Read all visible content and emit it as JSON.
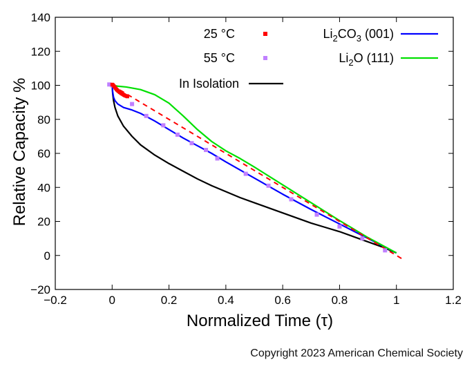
{
  "chart_data": {
    "type": "line",
    "xlabel": "Normalized Time (τ)",
    "ylabel": "Relative Capacity %",
    "xlim": [
      -0.2,
      1.2
    ],
    "ylim": [
      -20,
      140
    ],
    "xticks": [
      -0.2,
      0,
      0.2,
      0.4,
      0.6,
      0.8,
      1,
      1.2
    ],
    "xtick_labels": [
      "−0.2",
      "0",
      "0.2",
      "0.4",
      "0.6",
      "0.8",
      "1",
      "1.2"
    ],
    "yticks": [
      -20,
      0,
      20,
      40,
      60,
      80,
      100,
      120,
      140
    ],
    "ytick_labels": [
      "−20",
      "0",
      "20",
      "40",
      "60",
      "80",
      "100",
      "120",
      "140"
    ],
    "grid": false,
    "legend_position": "top",
    "series": [
      {
        "name": "25 °C",
        "kind": "scatter",
        "marker": "square",
        "color": "#ff0000",
        "x": [
          0.0,
          0.003,
          0.006,
          0.009,
          0.012,
          0.015,
          0.018,
          0.021,
          0.024,
          0.027,
          0.03,
          0.033,
          0.036,
          0.039,
          0.042,
          0.045,
          0.048,
          0.051,
          0.054
        ],
        "y": [
          100.5,
          100.2,
          99.6,
          99.0,
          98.3,
          97.7,
          97.2,
          96.7,
          96.3,
          95.9,
          95.6,
          95.2,
          94.9,
          94.6,
          94.3,
          94.0,
          93.8,
          93.6,
          93.4
        ]
      },
      {
        "name": "55 °C",
        "kind": "scatter",
        "marker": "square",
        "color": "#c080ff",
        "x": [
          -0.01,
          0.0,
          0.07,
          0.12,
          0.18,
          0.23,
          0.28,
          0.33,
          0.37,
          0.47,
          0.55,
          0.63,
          0.72,
          0.8,
          0.88,
          0.96
        ],
        "y": [
          100.5,
          100.0,
          89.0,
          82.0,
          76.5,
          71.0,
          66.0,
          62.0,
          57.0,
          48.0,
          41.0,
          33.0,
          24.0,
          17.0,
          10.0,
          3.0
        ]
      },
      {
        "name": "In Isolation",
        "kind": "line",
        "color": "#000000",
        "x": [
          0.0,
          0.002,
          0.005,
          0.01,
          0.02,
          0.04,
          0.07,
          0.1,
          0.15,
          0.2,
          0.25,
          0.3,
          0.35,
          0.4,
          0.45,
          0.5,
          0.55,
          0.6,
          0.65,
          0.7,
          0.75,
          0.8,
          0.85,
          0.9,
          0.95,
          1.0
        ],
        "y": [
          100.0,
          95.0,
          91.0,
          87.0,
          82.0,
          76.0,
          70.0,
          65.0,
          59.0,
          54.0,
          49.5,
          45.0,
          41.0,
          37.5,
          34.0,
          31.0,
          28.0,
          25.0,
          22.0,
          19.0,
          16.5,
          14.0,
          11.0,
          8.0,
          5.0,
          1.5
        ]
      },
      {
        "name": "Li2CO3 (001)",
        "kind": "line",
        "color": "#0000ff",
        "x": [
          0.0,
          0.002,
          0.005,
          0.01,
          0.02,
          0.04,
          0.07,
          0.1,
          0.15,
          0.2,
          0.25,
          0.3,
          0.35,
          0.4,
          0.5,
          0.6,
          0.7,
          0.8,
          0.9,
          1.0
        ],
        "y": [
          100.0,
          96.0,
          93.0,
          91.0,
          89.0,
          87.0,
          85.5,
          83.5,
          79.0,
          74.0,
          69.0,
          64.5,
          60.0,
          55.0,
          45.5,
          36.0,
          27.0,
          18.5,
          10.0,
          1.5
        ]
      },
      {
        "name": "Li2O (111)",
        "kind": "line",
        "color": "#00e000",
        "x": [
          0.0,
          0.02,
          0.05,
          0.1,
          0.15,
          0.2,
          0.25,
          0.3,
          0.35,
          0.4,
          0.45,
          0.5,
          0.6,
          0.7,
          0.8,
          0.9,
          1.0
        ],
        "y": [
          100.0,
          99.5,
          99.0,
          97.5,
          94.5,
          89.5,
          82.0,
          74.0,
          67.0,
          61.5,
          57.0,
          52.0,
          41.5,
          31.0,
          20.5,
          10.5,
          1.5
        ]
      },
      {
        "name": "",
        "kind": "line",
        "dashed": true,
        "color": "#ff0000",
        "x": [
          0.0,
          1.03
        ],
        "y": [
          100.0,
          -3.0
        ]
      }
    ],
    "legend": [
      {
        "label": "25 °C",
        "marker": "square",
        "color": "#ff0000"
      },
      {
        "label": "55 °C",
        "marker": "square",
        "color": "#c080ff"
      },
      {
        "label": "In Isolation",
        "marker": "line",
        "color": "#000000"
      },
      {
        "label_parts": [
          "Li",
          "2",
          "CO",
          "3",
          " (001)"
        ],
        "marker": "line",
        "color": "#0000ff"
      },
      {
        "label_parts": [
          "Li",
          "2",
          "O (111)"
        ],
        "marker": "line",
        "color": "#00e000"
      }
    ]
  },
  "credit": "Copyright 2023 American Chemical Society"
}
